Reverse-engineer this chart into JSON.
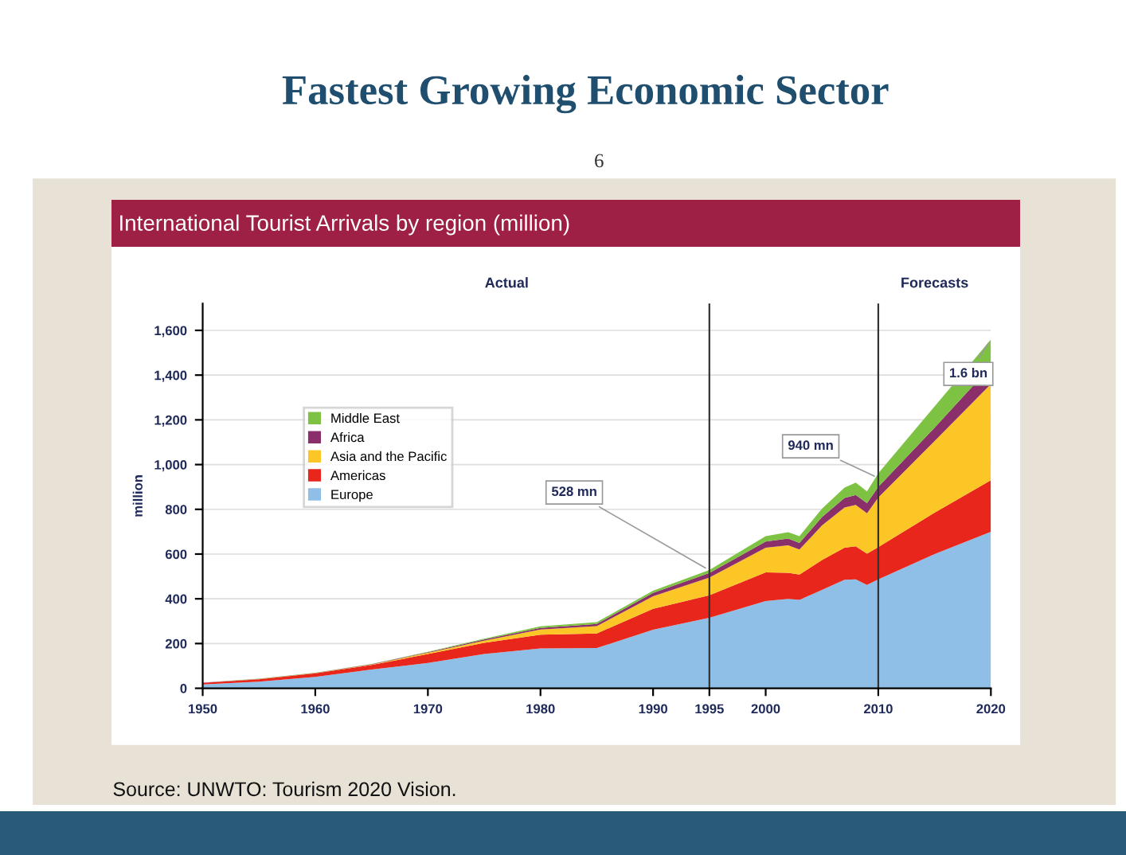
{
  "chart_data": {
    "type": "area",
    "stacked": true,
    "title": "Fastest Growing Economic Sector",
    "subtitle": "International Tourist Arrivals by region (million)",
    "ylabel": "million",
    "x": [
      1950,
      1955,
      1960,
      1965,
      1970,
      1975,
      1980,
      1985,
      1990,
      1995,
      2000,
      2002,
      2003,
      2005,
      2007,
      2008,
      2009,
      2010,
      2015,
      2020
    ],
    "series": [
      {
        "name": "Europe",
        "color": "#8fbfe6",
        "values": [
          17,
          30,
          51,
          84,
          113,
          153,
          178,
          180,
          262,
          315,
          390,
          400,
          395,
          440,
          485,
          487,
          462,
          487,
          600,
          700
        ]
      },
      {
        "name": "Americas",
        "color": "#e8261c",
        "values": [
          7,
          10,
          16,
          20,
          40,
          50,
          62,
          65,
          93,
          101,
          128,
          116,
          113,
          133,
          143,
          148,
          140,
          144,
          185,
          230
        ]
      },
      {
        "name": "Asia and the Pacific",
        "color": "#fdc627",
        "values": [
          0,
          1,
          1,
          2,
          6,
          10,
          23,
          33,
          56,
          79,
          110,
          123,
          112,
          155,
          180,
          185,
          180,
          222,
          320,
          430
        ]
      },
      {
        "name": "Africa",
        "color": "#8b2f6b",
        "values": [
          1,
          1,
          1,
          2,
          2,
          5,
          7,
          10,
          15,
          20,
          28,
          30,
          30,
          37,
          43,
          44,
          46,
          48,
          60,
          79
        ]
      },
      {
        "name": "Middle East",
        "color": "#7dc242",
        "values": [
          0,
          1,
          1,
          1,
          2,
          4,
          7,
          8,
          10,
          14,
          24,
          29,
          30,
          38,
          46,
          55,
          52,
          60,
          95,
          120
        ]
      }
    ],
    "xlim": [
      1950,
      2020
    ],
    "ylim": [
      0,
      1720
    ],
    "xticks": [
      1950,
      1960,
      1970,
      1980,
      1990,
      1995,
      2000,
      2010,
      2020
    ],
    "yticks": [
      0,
      200,
      400,
      600,
      800,
      {
        "value": 1000,
        "label": "1,000"
      },
      {
        "value": 1200,
        "label": "1,200"
      },
      {
        "value": 1400,
        "label": "1,400"
      },
      {
        "value": 1600,
        "label": "1,600"
      }
    ],
    "grid": "y",
    "legend": "left",
    "ref_lines": [
      {
        "axis": "x",
        "value": 1995,
        "color": "#333333"
      },
      {
        "axis": "x",
        "value": 2010,
        "color": "#333333"
      }
    ],
    "annotations": [
      {
        "text": "528 mn",
        "x": 1995,
        "y": 528
      },
      {
        "text": "940 mn",
        "x": 2010,
        "y": 940
      },
      {
        "text": "1.6 bn",
        "x": 2020,
        "y": 1560
      },
      "Actual",
      "Forecasts",
      "6",
      "Source: UNWTO: Tourism 2020 Vision."
    ]
  }
}
